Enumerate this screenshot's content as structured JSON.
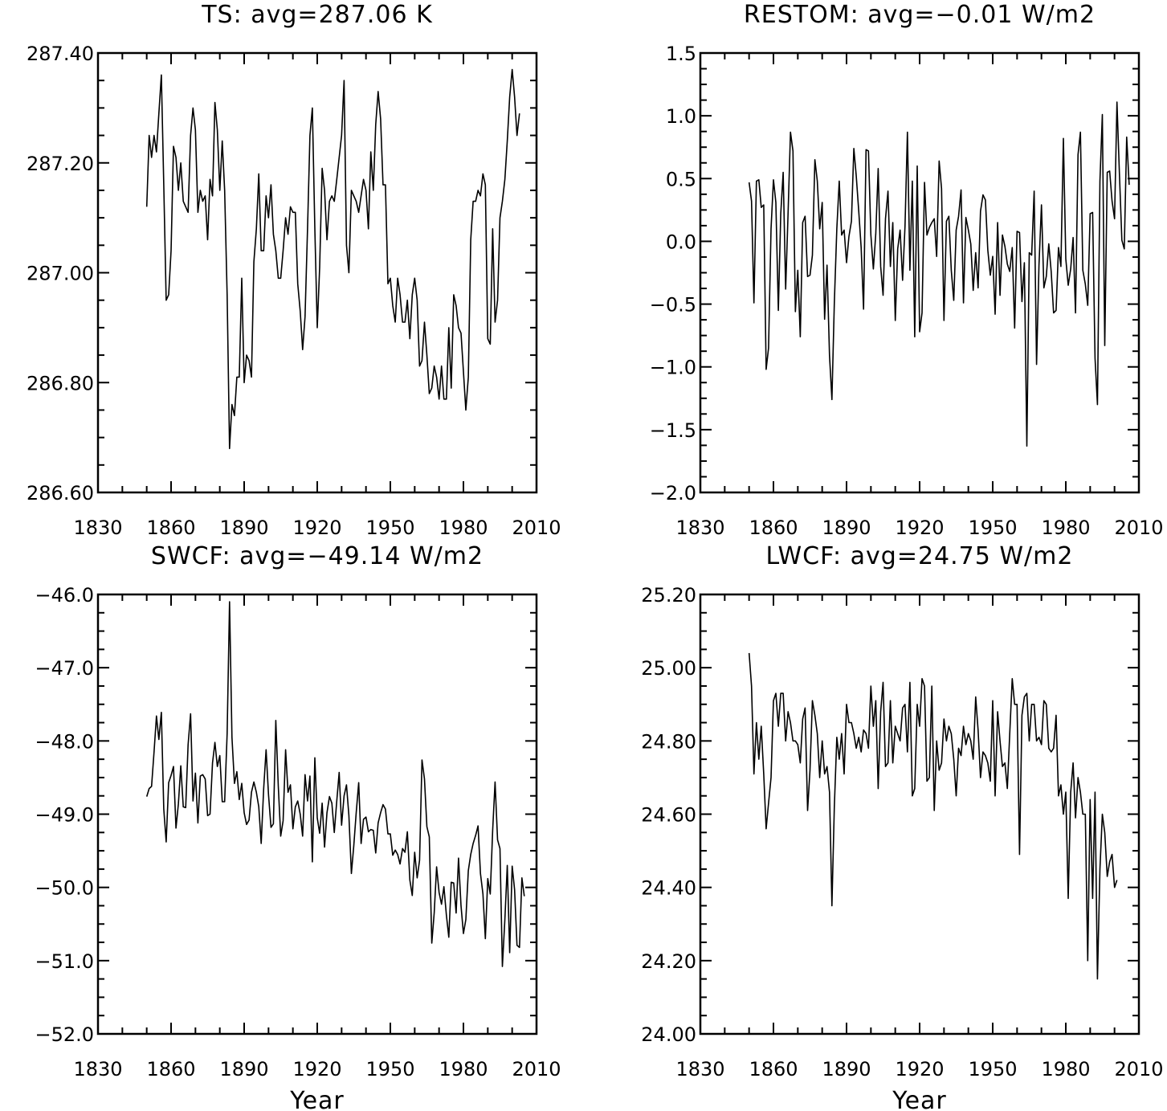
{
  "xlabel": "Year",
  "chart_data": [
    {
      "type": "line",
      "title": "TS: avg=287.06 K",
      "xlabel": "",
      "ylabel": "",
      "xlim": [
        1830,
        2010
      ],
      "ylim": [
        286.6,
        287.4
      ],
      "xticks": [
        1830,
        1860,
        1890,
        1920,
        1950,
        1980,
        2010
      ],
      "yticks": [
        "286.60",
        "286.80",
        "287.00",
        "287.20",
        "287.40"
      ],
      "ytick_values": [
        286.6,
        286.8,
        287.0,
        287.2,
        287.4
      ],
      "x_start": 1850,
      "x_step": 1,
      "values": [
        287.12,
        287.25,
        287.21,
        287.25,
        287.22,
        287.29,
        287.36,
        287.16,
        286.95,
        286.96,
        287.04,
        287.23,
        287.21,
        287.15,
        287.2,
        287.13,
        287.12,
        287.11,
        287.25,
        287.3,
        287.26,
        287.11,
        287.15,
        287.13,
        287.14,
        287.06,
        287.17,
        287.14,
        287.31,
        287.26,
        287.15,
        287.24,
        287.15,
        286.96,
        286.68,
        286.76,
        286.74,
        286.81,
        286.81,
        286.99,
        286.8,
        286.85,
        286.84,
        286.81,
        287.02,
        287.08,
        287.18,
        287.04,
        287.04,
        287.14,
        287.1,
        287.16,
        287.07,
        287.04,
        286.99,
        286.99,
        287.04,
        287.1,
        287.07,
        287.12,
        287.11,
        287.11,
        286.98,
        286.93,
        286.86,
        286.92,
        287.08,
        287.25,
        287.3,
        287.08,
        286.9,
        287.01,
        287.19,
        287.15,
        287.06,
        287.13,
        287.14,
        287.13,
        287.17,
        287.21,
        287.25,
        287.35,
        287.05,
        287.0,
        287.15,
        287.14,
        287.13,
        287.11,
        287.14,
        287.17,
        287.15,
        287.08,
        287.22,
        287.15,
        287.27,
        287.33,
        287.28,
        287.16,
        287.16,
        286.98,
        286.99,
        286.94,
        286.91,
        286.99,
        286.96,
        286.91,
        286.91,
        286.95,
        286.88,
        286.96,
        286.99,
        286.95,
        286.83,
        286.84,
        286.91,
        286.85,
        286.78,
        286.79,
        286.83,
        286.81,
        286.77,
        286.83,
        286.77,
        286.77,
        286.9,
        286.79,
        286.96,
        286.94,
        286.9,
        286.89,
        286.82,
        286.75,
        286.81,
        287.06,
        287.13,
        287.13,
        287.15,
        287.14,
        287.18,
        287.16,
        286.88,
        286.87,
        287.08,
        286.91,
        286.95,
        287.1,
        287.13,
        287.17,
        287.24,
        287.32,
        287.37,
        287.32,
        287.25,
        287.29
      ]
    },
    {
      "type": "line",
      "title": "RESTOM: avg=−0.01 W/m2",
      "xlabel": "",
      "ylabel": "",
      "xlim": [
        1830,
        2010
      ],
      "ylim": [
        -2.0,
        1.5
      ],
      "xticks": [
        1830,
        1860,
        1890,
        1920,
        1950,
        1980,
        2010
      ],
      "yticks": [
        "1.5",
        "1.0",
        "0.5",
        "0.0",
        "−0.5",
        "−1.0",
        "−1.5",
        "−2.0"
      ],
      "ytick_values": [
        1.5,
        1.0,
        0.5,
        0.0,
        -0.5,
        -1.0,
        -1.5,
        -2.0
      ],
      "x_start": 1850,
      "x_step": 1,
      "values": [
        0.47,
        0.32,
        -0.49,
        0.48,
        0.49,
        0.27,
        0.29,
        -1.02,
        -0.85,
        0.1,
        0.49,
        0.31,
        -0.55,
        0.22,
        0.55,
        -0.38,
        0.22,
        0.87,
        0.72,
        -0.56,
        -0.23,
        -0.76,
        0.15,
        0.2,
        -0.28,
        -0.27,
        -0.11,
        0.65,
        0.48,
        0.1,
        0.31,
        -0.62,
        -0.19,
        -0.91,
        -1.26,
        -0.49,
        0.1,
        0.48,
        0.05,
        0.09,
        -0.17,
        0.04,
        0.16,
        0.74,
        0.52,
        0.24,
        -0.05,
        -0.54,
        0.73,
        0.72,
        0.05,
        -0.22,
        0.06,
        0.58,
        -0.2,
        -0.43,
        0.18,
        0.4,
        -0.2,
        0.15,
        -0.63,
        -0.06,
        0.09,
        -0.31,
        0.12,
        0.87,
        -0.23,
        0.48,
        -0.76,
        0.6,
        -0.72,
        -0.57,
        0.47,
        0.05,
        0.11,
        0.15,
        0.18,
        -0.12,
        0.64,
        0.42,
        -0.63,
        0.16,
        0.2,
        -0.23,
        -0.47,
        0.09,
        0.2,
        0.41,
        -0.49,
        0.19,
        0.09,
        -0.02,
        -0.39,
        -0.09,
        -0.37,
        0.24,
        0.37,
        0.33,
        -0.07,
        -0.27,
        -0.12,
        -0.58,
        0.15,
        -0.43,
        0.05,
        -0.04,
        -0.18,
        -0.24,
        -0.05,
        -0.69,
        0.08,
        0.07,
        -0.48,
        -0.17,
        -1.63,
        -0.09,
        -0.11,
        0.4,
        -0.98,
        -0.19,
        0.29,
        -0.37,
        -0.28,
        -0.02,
        -0.24,
        -0.57,
        -0.55,
        -0.05,
        -0.2,
        0.82,
        -0.14,
        -0.35,
        -0.22,
        0.03,
        -0.57,
        0.69,
        0.87,
        -0.23,
        -0.34,
        -0.51,
        0.22,
        0.23,
        -0.93,
        -1.3,
        0.48,
        1.01,
        -0.83,
        0.55,
        0.56,
        0.32,
        0.18,
        1.11,
        0.55,
        0.01,
        -0.06,
        0.83,
        0.45
      ]
    },
    {
      "type": "line",
      "title": "SWCF: avg=−49.14 W/m2",
      "xlabel": "Year",
      "ylabel": "",
      "xlim": [
        1830,
        2010
      ],
      "ylim": [
        -52.0,
        -46.0
      ],
      "xticks": [
        1830,
        1860,
        1890,
        1920,
        1950,
        1980,
        2010
      ],
      "yticks": [
        "−46.0",
        "−47.0",
        "−48.0",
        "−49.0",
        "−50.0",
        "−51.0",
        "−52.0"
      ],
      "ytick_values": [
        -46.0,
        -47.0,
        -48.0,
        -49.0,
        -50.0,
        -51.0,
        -52.0
      ],
      "x_start": 1850,
      "x_step": 1,
      "values": [
        -48.76,
        -48.65,
        -48.62,
        -48.15,
        -47.66,
        -47.98,
        -47.61,
        -48.93,
        -49.38,
        -48.57,
        -48.47,
        -48.35,
        -49.19,
        -48.86,
        -48.34,
        -48.9,
        -48.91,
        -48.05,
        -47.63,
        -48.82,
        -48.44,
        -49.12,
        -48.48,
        -48.46,
        -48.52,
        -49.02,
        -49.0,
        -48.3,
        -48.02,
        -48.35,
        -48.2,
        -48.83,
        -48.83,
        -47.9,
        -46.1,
        -47.95,
        -48.58,
        -48.42,
        -48.8,
        -48.58,
        -48.98,
        -49.14,
        -49.08,
        -48.7,
        -48.56,
        -48.7,
        -48.9,
        -49.4,
        -48.65,
        -48.12,
        -48.73,
        -49.18,
        -49.13,
        -47.72,
        -48.62,
        -49.3,
        -49.09,
        -48.12,
        -48.7,
        -48.6,
        -49.2,
        -48.9,
        -48.82,
        -49.0,
        -49.3,
        -48.46,
        -48.82,
        -48.48,
        -49.65,
        -48.23,
        -49.05,
        -49.26,
        -48.85,
        -49.45,
        -48.98,
        -48.76,
        -48.85,
        -49.25,
        -48.82,
        -48.43,
        -49.15,
        -48.75,
        -48.6,
        -49.02,
        -49.81,
        -49.43,
        -48.98,
        -48.57,
        -49.4,
        -49.07,
        -49.04,
        -49.24,
        -49.21,
        -49.22,
        -49.53,
        -49.12,
        -48.98,
        -48.87,
        -48.93,
        -49.27,
        -49.27,
        -49.56,
        -49.49,
        -49.55,
        -49.68,
        -49.47,
        -49.52,
        -49.24,
        -49.9,
        -50.11,
        -49.52,
        -49.87,
        -49.63,
        -48.26,
        -48.52,
        -49.17,
        -49.31,
        -50.76,
        -50.35,
        -49.72,
        -50.07,
        -50.23,
        -49.99,
        -50.38,
        -50.68,
        -49.93,
        -49.94,
        -50.35,
        -49.6,
        -50.25,
        -50.63,
        -50.44,
        -49.77,
        -49.55,
        -49.4,
        -49.29,
        -49.16,
        -49.81,
        -50.09,
        -50.7,
        -49.88,
        -50.09,
        -49.22,
        -48.56,
        -49.35,
        -49.47,
        -51.08,
        -50.44,
        -49.7,
        -50.89,
        -49.71,
        -50.03,
        -50.79,
        -50.82,
        -49.87,
        -50.12
      ]
    },
    {
      "type": "line",
      "title": "LWCF: avg=24.75 W/m2",
      "xlabel": "Year",
      "ylabel": "",
      "xlim": [
        1830,
        2010
      ],
      "ylim": [
        24.0,
        25.2
      ],
      "xticks": [
        1830,
        1860,
        1890,
        1920,
        1950,
        1980,
        2010
      ],
      "yticks": [
        "25.20",
        "25.00",
        "24.80",
        "24.60",
        "24.40",
        "24.20",
        "24.00"
      ],
      "ytick_values": [
        25.2,
        25.0,
        24.8,
        24.6,
        24.4,
        24.2,
        24.0
      ],
      "x_start": 1850,
      "x_step": 1,
      "values": [
        25.04,
        24.95,
        24.71,
        24.85,
        24.75,
        24.84,
        24.71,
        24.56,
        24.63,
        24.7,
        24.91,
        24.93,
        24.84,
        24.93,
        24.93,
        24.8,
        24.88,
        24.85,
        24.8,
        24.8,
        24.79,
        24.74,
        24.86,
        24.89,
        24.61,
        24.72,
        24.91,
        24.87,
        24.82,
        24.7,
        24.8,
        24.71,
        24.73,
        24.66,
        24.35,
        24.62,
        24.81,
        24.75,
        24.82,
        24.71,
        24.9,
        24.85,
        24.85,
        24.82,
        24.78,
        24.81,
        24.77,
        24.83,
        24.82,
        24.78,
        24.95,
        24.84,
        24.91,
        24.67,
        24.88,
        24.96,
        24.73,
        24.74,
        24.91,
        24.74,
        24.84,
        24.82,
        24.8,
        24.89,
        24.9,
        24.77,
        24.96,
        24.65,
        24.67,
        24.9,
        24.84,
        24.97,
        24.95,
        24.69,
        24.7,
        24.95,
        24.61,
        24.8,
        24.72,
        24.74,
        24.86,
        24.8,
        24.84,
        24.82,
        24.75,
        24.65,
        24.78,
        24.76,
        24.84,
        24.79,
        24.82,
        24.8,
        24.75,
        24.92,
        24.83,
        24.7,
        24.77,
        24.76,
        24.74,
        24.69,
        24.91,
        24.65,
        24.88,
        24.8,
        24.73,
        24.74,
        24.67,
        24.82,
        24.97,
        24.9,
        24.9,
        24.49,
        24.87,
        24.92,
        24.93,
        24.8,
        24.9,
        24.9,
        24.8,
        24.81,
        24.79,
        24.91,
        24.9,
        24.78,
        24.77,
        24.78,
        24.87,
        24.65,
        24.68,
        24.6,
        24.66,
        24.37,
        24.66,
        24.74,
        24.59,
        24.7,
        24.66,
        24.6,
        24.6,
        24.2,
        24.64,
        24.37,
        24.66,
        24.15,
        24.45,
        24.6,
        24.55,
        24.43,
        24.47,
        24.49,
        24.4,
        24.42
      ]
    }
  ]
}
